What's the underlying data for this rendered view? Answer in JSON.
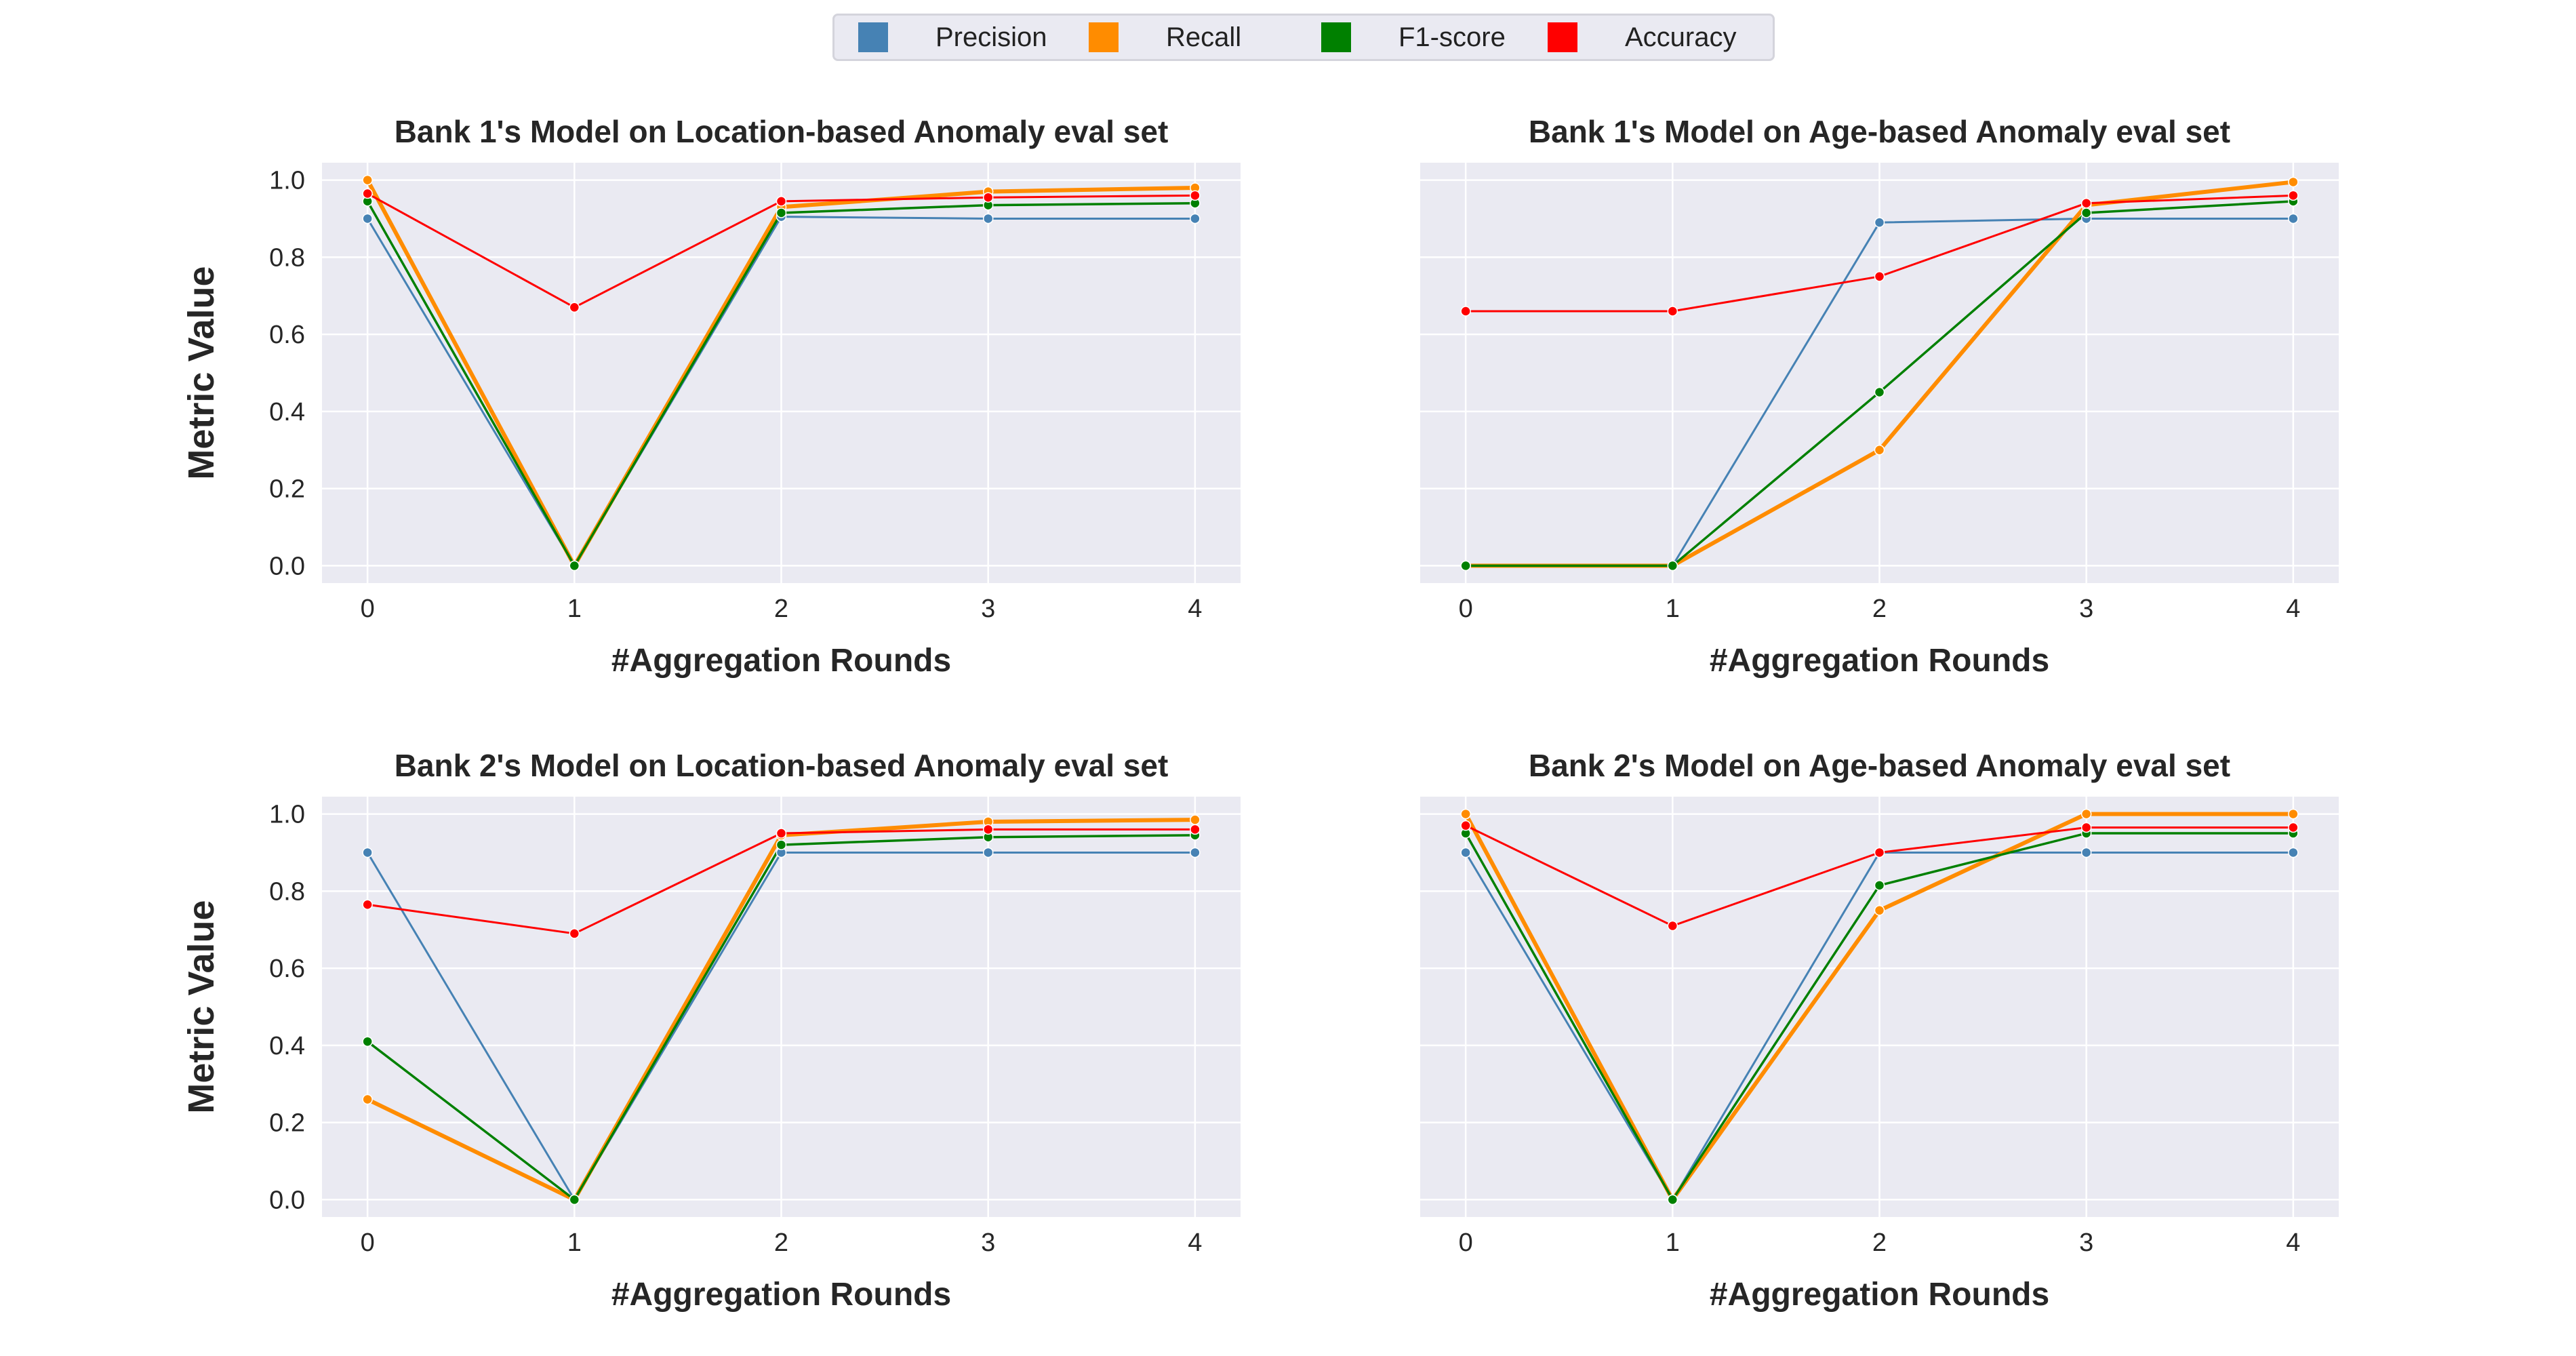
{
  "legend": [
    {
      "name": "Precision",
      "color": "#4682b4"
    },
    {
      "name": "Recall",
      "color": "#ff8c00"
    },
    {
      "name": "F1-score",
      "color": "#008000"
    },
    {
      "name": "Accuracy",
      "color": "#ff0000"
    }
  ],
  "chart_data": [
    {
      "type": "line",
      "title": "Bank 1's Model on Location-based Anomaly eval set",
      "xlabel": "#Aggregation Rounds",
      "ylabel": "Metric Value",
      "x": [
        0,
        1,
        2,
        3,
        4
      ],
      "xticks": [
        "0",
        "1",
        "2",
        "3",
        "4"
      ],
      "yticks": [
        "0.0",
        "0.2",
        "0.4",
        "0.6",
        "0.8",
        "1.0"
      ],
      "ylim": [
        -0.045,
        1.045
      ],
      "grid": true,
      "series": [
        {
          "name": "Precision",
          "color": "#4682b4",
          "values": [
            0.9,
            0.0,
            0.905,
            0.9,
            0.9
          ]
        },
        {
          "name": "Recall",
          "color": "#ff8c00",
          "values": [
            1.0,
            0.0,
            0.93,
            0.97,
            0.98
          ]
        },
        {
          "name": "F1-score",
          "color": "#008000",
          "values": [
            0.945,
            0.0,
            0.915,
            0.935,
            0.94
          ]
        },
        {
          "name": "Accuracy",
          "color": "#ff0000",
          "values": [
            0.965,
            0.67,
            0.945,
            0.955,
            0.96
          ]
        }
      ]
    },
    {
      "type": "line",
      "title": "Bank 1's Model on Age-based Anomaly eval set",
      "xlabel": "#Aggregation Rounds",
      "ylabel": "",
      "x": [
        0,
        1,
        2,
        3,
        4
      ],
      "xticks": [
        "0",
        "1",
        "2",
        "3",
        "4"
      ],
      "yticks": [],
      "ylim": [
        -0.045,
        1.045
      ],
      "grid": true,
      "series": [
        {
          "name": "Precision",
          "color": "#4682b4",
          "values": [
            0.0,
            0.0,
            0.89,
            0.9,
            0.9
          ]
        },
        {
          "name": "Recall",
          "color": "#ff8c00",
          "values": [
            0.0,
            0.0,
            0.3,
            0.935,
            0.995
          ]
        },
        {
          "name": "F1-score",
          "color": "#008000",
          "values": [
            0.0,
            0.0,
            0.45,
            0.915,
            0.945
          ]
        },
        {
          "name": "Accuracy",
          "color": "#ff0000",
          "values": [
            0.66,
            0.66,
            0.75,
            0.94,
            0.96
          ]
        }
      ]
    },
    {
      "type": "line",
      "title": "Bank 2's Model on Location-based Anomaly eval set",
      "xlabel": "#Aggregation Rounds",
      "ylabel": "Metric Value",
      "x": [
        0,
        1,
        2,
        3,
        4
      ],
      "xticks": [
        "0",
        "1",
        "2",
        "3",
        "4"
      ],
      "yticks": [
        "0.0",
        "0.2",
        "0.4",
        "0.6",
        "0.8",
        "1.0"
      ],
      "ylim": [
        -0.045,
        1.045
      ],
      "grid": true,
      "series": [
        {
          "name": "Precision",
          "color": "#4682b4",
          "values": [
            0.9,
            0.0,
            0.9,
            0.9,
            0.9
          ]
        },
        {
          "name": "Recall",
          "color": "#ff8c00",
          "values": [
            0.26,
            0.0,
            0.945,
            0.98,
            0.985
          ]
        },
        {
          "name": "F1-score",
          "color": "#008000",
          "values": [
            0.41,
            0.0,
            0.92,
            0.94,
            0.945
          ]
        },
        {
          "name": "Accuracy",
          "color": "#ff0000",
          "values": [
            0.765,
            0.69,
            0.95,
            0.96,
            0.96
          ]
        }
      ]
    },
    {
      "type": "line",
      "title": "Bank 2's Model on Age-based Anomaly eval set",
      "xlabel": "#Aggregation Rounds",
      "ylabel": "",
      "x": [
        0,
        1,
        2,
        3,
        4
      ],
      "xticks": [
        "0",
        "1",
        "2",
        "3",
        "4"
      ],
      "yticks": [],
      "ylim": [
        -0.045,
        1.045
      ],
      "grid": true,
      "series": [
        {
          "name": "Precision",
          "color": "#4682b4",
          "values": [
            0.9,
            0.0,
            0.9,
            0.9,
            0.9
          ]
        },
        {
          "name": "Recall",
          "color": "#ff8c00",
          "values": [
            1.0,
            0.0,
            0.75,
            1.0,
            1.0
          ]
        },
        {
          "name": "F1-score",
          "color": "#008000",
          "values": [
            0.95,
            0.0,
            0.815,
            0.95,
            0.95
          ]
        },
        {
          "name": "Accuracy",
          "color": "#ff0000",
          "values": [
            0.97,
            0.71,
            0.9,
            0.965,
            0.965
          ]
        }
      ]
    }
  ]
}
